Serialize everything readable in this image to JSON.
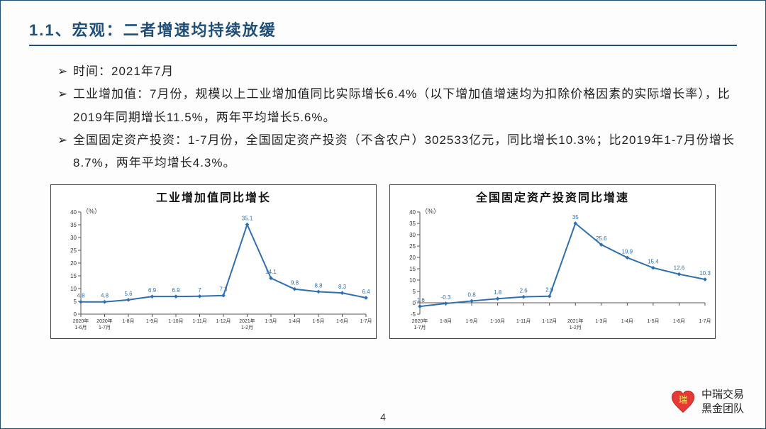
{
  "title": "1.1、宏观：二者增速均持续放缓",
  "bullets": [
    "时间：2021年7月",
    "工业增加值：7月份，规模以上工业增加值同比实际增长6.4%（以下增加值增速均为扣除价格因素的实际增长率），比2019年同期增长11.5%，两年平均增长5.6%。",
    "全国固定资产投资：1-7月份，全国固定资产投资（不含农户）302533亿元，同比增长10.3%；比2019年1-7月份增长8.7%，两年平均增长4.3%。"
  ],
  "page_number": "4",
  "logo_lines": [
    "中瑞交易",
    "黑金团队"
  ],
  "logo_char": "瑞",
  "chart_left": {
    "title": "工业增加值同比增长",
    "y_label": "（%）",
    "y_min": 0,
    "y_max": 40,
    "y_step": 5,
    "categories": [
      "2020年\n1-6月",
      "2020年\n1-7月",
      "1-8月",
      "1-9月",
      "1-10月",
      "1-11月",
      "1-12月",
      "2021年\n1-2月",
      "1-3月",
      "1-4月",
      "1-5月",
      "1-6月",
      "1-7月"
    ],
    "values": [
      4.8,
      4.8,
      5.6,
      6.9,
      6.9,
      7,
      7.3,
      35.1,
      14.1,
      9.8,
      8.8,
      8.3,
      6.4
    ],
    "line_color": "#2f6fb0",
    "axis_color": "#555",
    "label_color": "#2f6fb0",
    "label_fontsize": 8,
    "tick_fontsize": 7
  },
  "chart_right": {
    "title": "全国固定资产投资同比增速",
    "y_label": "（%）",
    "y_min": -5,
    "y_max": 40,
    "y_step": 5,
    "categories": [
      "2020年\n1-7月",
      "1-8月",
      "1-9月",
      "1-10月",
      "1-11月",
      "1-12月",
      "2021年\n1-2月",
      "1-3月",
      "1-4月",
      "1-5月",
      "1-6月",
      "1-7月"
    ],
    "values": [
      -1.6,
      -0.3,
      0.8,
      1.8,
      2.6,
      2.9,
      35,
      25.6,
      19.9,
      15.4,
      12.6,
      10.3
    ],
    "line_color": "#2f6fb0",
    "axis_color": "#555",
    "label_color": "#2f6fb0",
    "label_fontsize": 8,
    "tick_fontsize": 7
  }
}
